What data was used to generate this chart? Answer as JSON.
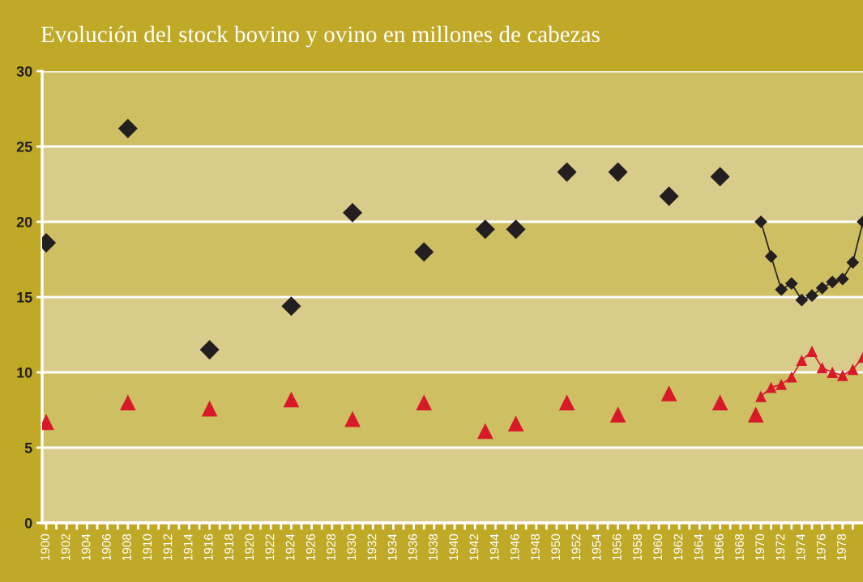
{
  "chart_data": {
    "type": "scatter",
    "title": "Evolución del stock bovino y ovino en millones de cabezas",
    "series": [
      {
        "type": "scatter",
        "color": "#231f20",
        "marker": "diamond",
        "x": [
          1900,
          1908,
          1916,
          1924,
          1930,
          1937,
          1943,
          1946,
          1951,
          1956,
          1961,
          1966
        ],
        "values": [
          18.6,
          26.2,
          11.5,
          14.4,
          20.6,
          18.0,
          19.5,
          19.5,
          23.3,
          23.3,
          21.7,
          23.0
        ]
      },
      {
        "type": "line",
        "color": "#231f20",
        "marker": "diamond",
        "x": [
          1970,
          1971,
          1972,
          1973,
          1974,
          1975,
          1976,
          1977,
          1978,
          1979,
          1980
        ],
        "values": [
          20.0,
          17.7,
          15.5,
          15.9,
          14.8,
          15.1,
          15.6,
          16.0,
          16.2,
          17.3,
          20.0
        ]
      },
      {
        "type": "scatter",
        "color": "#d7192a",
        "marker": "triangle",
        "x": [
          1900,
          1908,
          1916,
          1924,
          1930,
          1937,
          1943,
          1946,
          1951,
          1956,
          1961,
          1966,
          1969.5
        ],
        "values": [
          6.7,
          8.0,
          7.6,
          8.2,
          6.9,
          8.0,
          6.1,
          6.6,
          8.0,
          7.2,
          8.6,
          8.0,
          7.2
        ]
      },
      {
        "type": "line",
        "color": "#d7192a",
        "marker": "triangle",
        "x": [
          1970,
          1971,
          1972,
          1973,
          1974,
          1975,
          1976,
          1977,
          1978,
          1979,
          1980
        ],
        "values": [
          8.4,
          9.0,
          9.2,
          9.7,
          10.8,
          11.4,
          10.3,
          10.0,
          9.8,
          10.2,
          11.0
        ]
      }
    ],
    "xlim": [
      1899.6,
      1980
    ],
    "xticks": [
      1900,
      {
        "value": 1901,
        "label": null
      },
      1902,
      {
        "value": 1903,
        "label": null
      },
      1904,
      {
        "value": 1905,
        "label": null
      },
      1906,
      {
        "value": 1907,
        "label": null
      },
      1908,
      {
        "value": 1909,
        "label": null
      },
      1910,
      {
        "value": 1911,
        "label": null
      },
      1912,
      {
        "value": 1913,
        "label": null
      },
      1914,
      {
        "value": 1915,
        "label": null
      },
      1916,
      {
        "value": 1917,
        "label": null
      },
      1918,
      {
        "value": 1919,
        "label": null
      },
      1920,
      {
        "value": 1921,
        "label": null
      },
      1922,
      {
        "value": 1923,
        "label": null
      },
      1924,
      {
        "value": 1925,
        "label": null
      },
      1926,
      {
        "value": 1927,
        "label": null
      },
      1928,
      {
        "value": 1929,
        "label": null
      },
      1930,
      {
        "value": 1931,
        "label": null
      },
      1932,
      {
        "value": 1933,
        "label": null
      },
      1934,
      {
        "value": 1935,
        "label": null
      },
      1936,
      {
        "value": 1937,
        "label": null
      },
      1938,
      {
        "value": 1939,
        "label": null
      },
      1940,
      {
        "value": 1941,
        "label": null
      },
      1942,
      {
        "value": 1943,
        "label": null
      },
      1944,
      {
        "value": 1945,
        "label": null
      },
      1946,
      {
        "value": 1947,
        "label": null
      },
      1948,
      {
        "value": 1949,
        "label": null
      },
      1950,
      {
        "value": 1951,
        "label": null
      },
      1952,
      {
        "value": 1953,
        "label": null
      },
      1954,
      {
        "value": 1955,
        "label": null
      },
      1956,
      {
        "value": 1957,
        "label": null
      },
      1958,
      {
        "value": 1959,
        "label": null
      },
      1960,
      {
        "value": 1961,
        "label": null
      },
      1962,
      {
        "value": 1963,
        "label": null
      },
      1964,
      {
        "value": 1965,
        "label": null
      },
      1966,
      {
        "value": 1967,
        "label": null
      },
      1968,
      {
        "value": 1969,
        "label": null
      },
      1970,
      {
        "value": 1971,
        "label": null
      },
      1972,
      {
        "value": 1973,
        "label": null
      },
      1974,
      {
        "value": 1975,
        "label": null
      },
      1976,
      {
        "value": 1977,
        "label": null
      },
      1978,
      {
        "value": 1979,
        "label": null
      }
    ],
    "ylim": [
      0,
      30
    ],
    "yticks": [
      0,
      5,
      10,
      15,
      20,
      25,
      30
    ],
    "grid": "y"
  }
}
